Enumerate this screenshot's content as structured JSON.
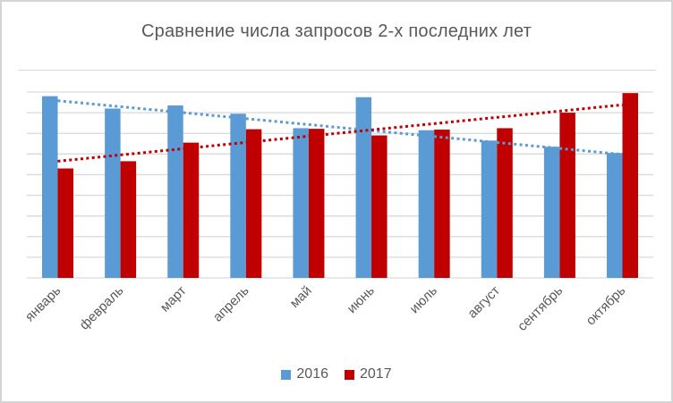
{
  "title": "Сравнение числа запросов 2-х последних лет",
  "colors": {
    "series_2016": "#5B9BD5",
    "series_2017": "#C00000",
    "gridline": "#D9D9D9",
    "text": "#595959",
    "frame_border": "#D4D4D4"
  },
  "chart_data": {
    "type": "bar",
    "title": "Сравнение числа запросов 2-х последних лет",
    "categories": [
      "январь",
      "февраль",
      "март",
      "апрель",
      "май",
      "июнь",
      "июль",
      "август",
      "сентябрь",
      "октябрь"
    ],
    "series": [
      {
        "name": "2016",
        "color": "#5B9BD5",
        "values": [
          880,
          820,
          835,
          795,
          725,
          875,
          715,
          665,
          635,
          605
        ]
      },
      {
        "name": "2017",
        "color": "#C00000",
        "values": [
          530,
          565,
          655,
          720,
          722,
          690,
          718,
          725,
          800,
          895
        ]
      }
    ],
    "trendlines": [
      {
        "series": "2016",
        "style": "dotted",
        "color": "#5B9BD5",
        "start_value": 858,
        "end_value": 598
      },
      {
        "series": "2017",
        "style": "dotted",
        "color": "#C00000",
        "start_value": 565,
        "end_value": 838
      }
    ],
    "xlabel": "",
    "ylabel": "",
    "ylim": [
      0,
      900
    ],
    "grid_step": 100,
    "grid": true,
    "y_axis_labels_visible": false,
    "x_label_rotation": -45,
    "legend_position": "bottom"
  },
  "legend": {
    "items": [
      {
        "label": "2016"
      },
      {
        "label": "2017"
      }
    ]
  }
}
